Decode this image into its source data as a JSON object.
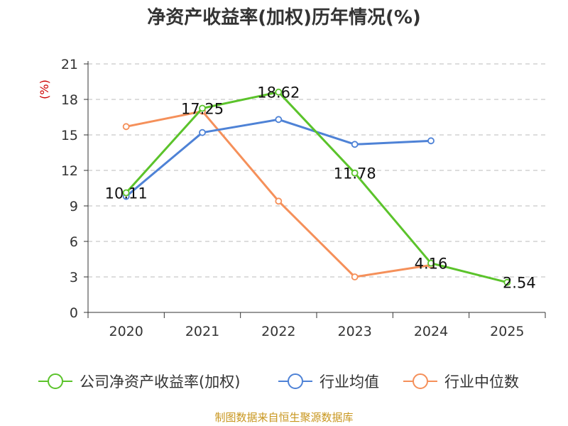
{
  "chart_data": {
    "type": "line",
    "title": "净资产收益率(加权)历年情况(%)",
    "ylabel": "(%)",
    "xlabel": "",
    "categories": [
      "2020",
      "2021",
      "2022",
      "2023",
      "2024",
      "2025"
    ],
    "ylim": [
      0,
      21
    ],
    "yticks": [
      0,
      3,
      6,
      9,
      12,
      15,
      18,
      21
    ],
    "grid": true,
    "legend_position": "bottom",
    "series": [
      {
        "name": "公司净资产收益率(加权)",
        "color": "#5bc32b",
        "values": [
          10.11,
          17.25,
          18.62,
          11.78,
          4.16,
          2.54
        ],
        "labels": [
          "10.11",
          "17.25",
          "18.62",
          "11.78",
          "4.16",
          "2.54"
        ]
      },
      {
        "name": "行业均值",
        "color": "#4e82d6",
        "values": [
          9.8,
          15.2,
          16.3,
          14.2,
          14.5,
          null
        ]
      },
      {
        "name": "行业中位数",
        "color": "#f5905a",
        "values": [
          15.7,
          17.0,
          9.4,
          3.0,
          4.0,
          null
        ]
      }
    ],
    "source": "制图数据来自恒生聚源数据库"
  }
}
